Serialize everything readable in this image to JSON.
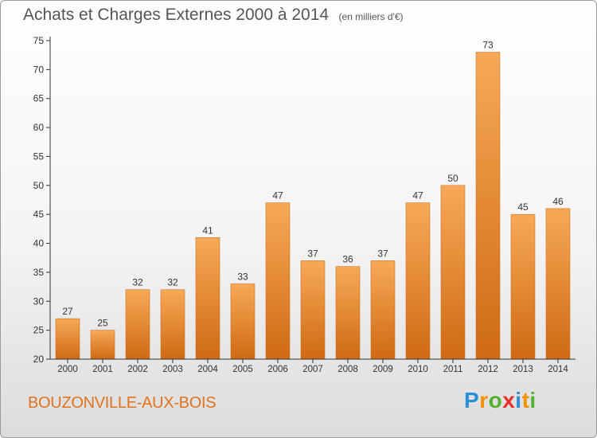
{
  "header": {
    "title": "Achats et Charges Externes 2000 à 2014",
    "unit": "(en milliers d'€)"
  },
  "footer": {
    "location": "BOUZONVILLE-AUX-BOIS"
  },
  "logo": {
    "letters": [
      "P",
      "r",
      "o",
      "x",
      "i",
      "t",
      "i"
    ],
    "colors": [
      "#2a8fd6",
      "#f39200",
      "#55b030",
      "#e6312b",
      "#2a8fd6",
      "#f39200",
      "#55b030"
    ]
  },
  "colors": {
    "bar_light": "#f7a957",
    "bar_dark": "#cf6a13",
    "axis": "#333333",
    "text": "#333333"
  },
  "chart_data": {
    "type": "bar",
    "categories": [
      "2000",
      "2001",
      "2002",
      "2003",
      "2004",
      "2005",
      "2006",
      "2007",
      "2008",
      "2009",
      "2010",
      "2011",
      "2012",
      "2013",
      "2014"
    ],
    "values": [
      27,
      25,
      32,
      32,
      41,
      33,
      47,
      37,
      36,
      37,
      47,
      50,
      73,
      45,
      46
    ],
    "ylim": [
      20,
      75
    ],
    "yticks": [
      20,
      25,
      30,
      35,
      40,
      45,
      50,
      55,
      60,
      65,
      70,
      75
    ],
    "grid": false
  }
}
